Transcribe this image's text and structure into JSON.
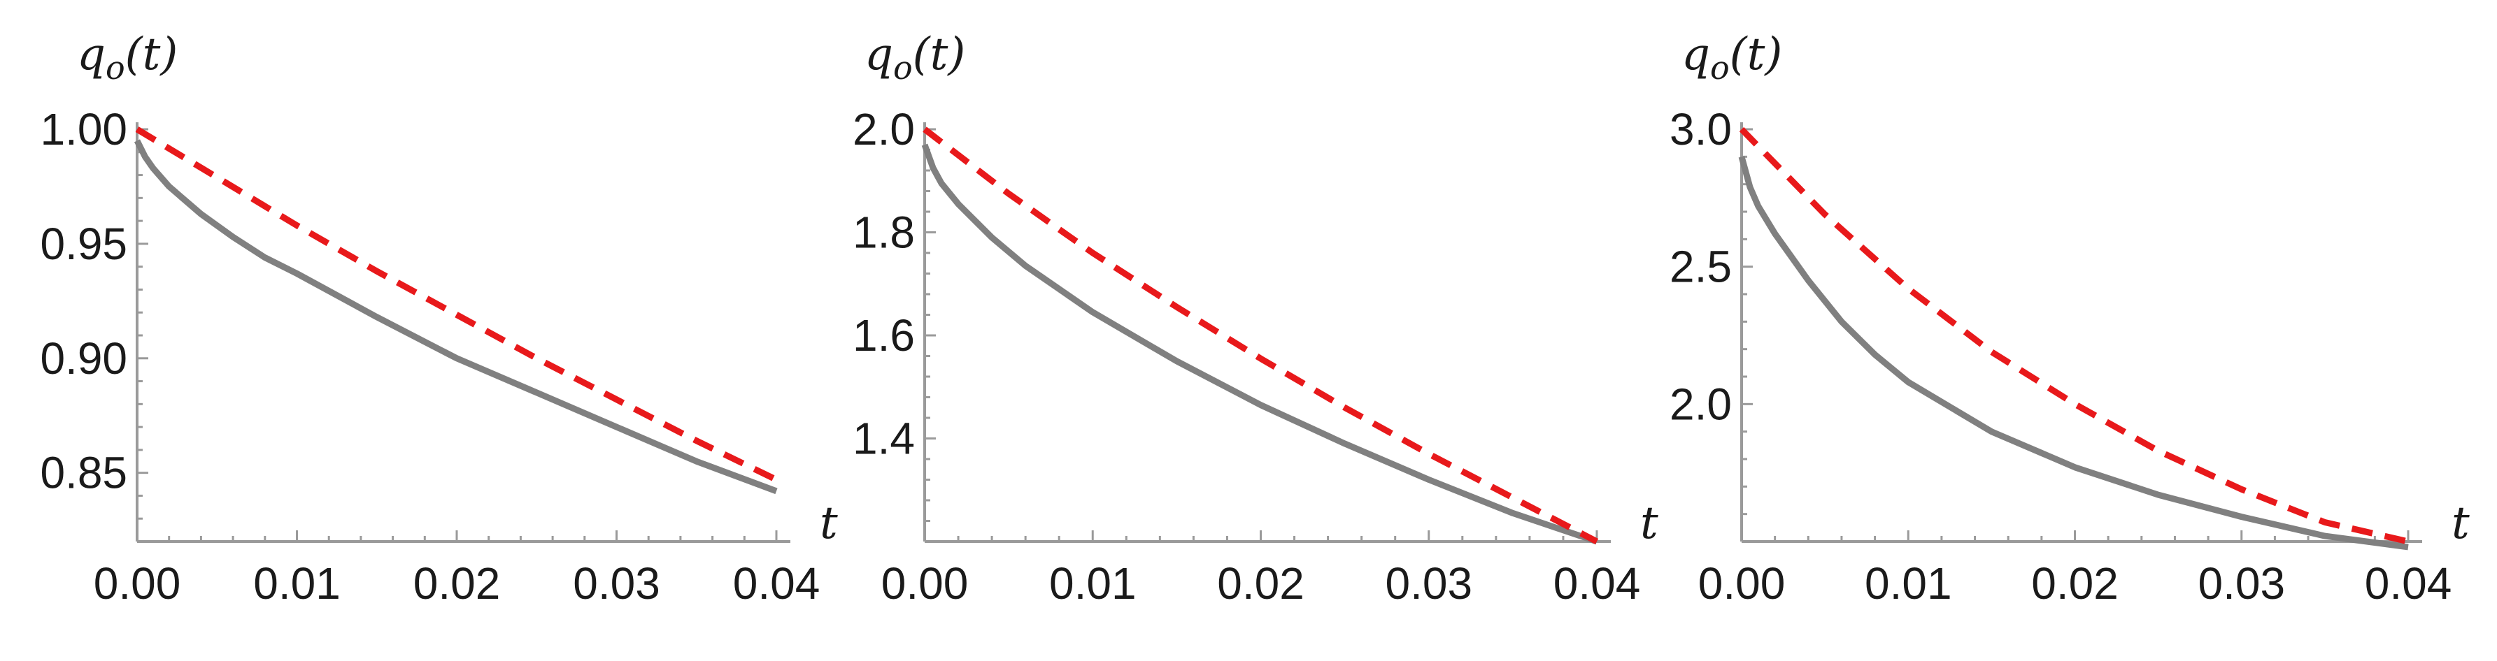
{
  "chart_data": [
    {
      "type": "line",
      "ylabel": "q_o(t)",
      "xlabel": "t",
      "xlim": [
        0,
        0.04
      ],
      "ylim": [
        0.82,
        1.0
      ],
      "xticks": [
        "0.00",
        "0.01",
        "0.02",
        "0.03",
        "0.04"
      ],
      "yticks": [
        "0.85",
        "0.90",
        "0.95",
        "1.00"
      ],
      "grid": false,
      "series": [
        {
          "style": "solid",
          "color": "#808080",
          "x": [
            0,
            0.0005,
            0.001,
            0.002,
            0.004,
            0.006,
            0.008,
            0.01,
            0.015,
            0.02,
            0.025,
            0.03,
            0.035,
            0.04
          ],
          "y": [
            0.995,
            0.988,
            0.983,
            0.975,
            0.963,
            0.953,
            0.944,
            0.937,
            0.918,
            0.9,
            0.885,
            0.87,
            0.855,
            0.842
          ]
        },
        {
          "style": "dashed",
          "color": "#e8191b",
          "x": [
            0,
            0.005,
            0.01,
            0.015,
            0.02,
            0.025,
            0.03,
            0.035,
            0.04
          ],
          "y": [
            1.0,
            0.979,
            0.958,
            0.938,
            0.919,
            0.9,
            0.882,
            0.864,
            0.847
          ]
        }
      ]
    },
    {
      "type": "line",
      "ylabel": "q_o(t)",
      "xlabel": "t",
      "xlim": [
        0,
        0.04
      ],
      "ylim": [
        1.2,
        2.0
      ],
      "xticks": [
        "0.00",
        "0.01",
        "0.02",
        "0.03",
        "0.04"
      ],
      "yticks": [
        "1.4",
        "1.6",
        "1.8",
        "2.0"
      ],
      "grid": false,
      "series": [
        {
          "style": "solid",
          "color": "#808080",
          "x": [
            0,
            0.0005,
            0.001,
            0.002,
            0.004,
            0.006,
            0.008,
            0.01,
            0.015,
            0.02,
            0.025,
            0.03,
            0.035,
            0.04
          ],
          "y": [
            1.97,
            1.925,
            1.895,
            1.855,
            1.79,
            1.735,
            1.69,
            1.645,
            1.55,
            1.465,
            1.39,
            1.32,
            1.255,
            1.2
          ]
        },
        {
          "style": "dashed",
          "color": "#e8191b",
          "x": [
            0,
            0.005,
            0.01,
            0.015,
            0.02,
            0.025,
            0.03,
            0.035,
            0.04
          ],
          "y": [
            2.0,
            1.875,
            1.76,
            1.655,
            1.555,
            1.46,
            1.37,
            1.285,
            1.2
          ]
        }
      ]
    },
    {
      "type": "line",
      "ylabel": "q_o(t)",
      "xlabel": "t",
      "xlim": [
        0,
        0.04
      ],
      "ylim": [
        1.5,
        3.0
      ],
      "xticks": [
        "0.00",
        "0.01",
        "0.02",
        "0.03",
        "0.04"
      ],
      "yticks": [
        "2.0",
        "2.5",
        "3.0"
      ],
      "grid": false,
      "series": [
        {
          "style": "solid",
          "color": "#808080",
          "x": [
            0,
            0.0005,
            0.001,
            0.002,
            0.004,
            0.006,
            0.008,
            0.01,
            0.015,
            0.02,
            0.025,
            0.03,
            0.035,
            0.04
          ],
          "y": [
            2.9,
            2.79,
            2.72,
            2.62,
            2.45,
            2.3,
            2.18,
            2.08,
            1.9,
            1.77,
            1.67,
            1.59,
            1.52,
            1.48
          ]
        },
        {
          "style": "dashed",
          "color": "#e8191b",
          "x": [
            0,
            0.005,
            0.01,
            0.015,
            0.02,
            0.025,
            0.03,
            0.035,
            0.04
          ],
          "y": [
            3.0,
            2.69,
            2.42,
            2.19,
            2.0,
            1.83,
            1.69,
            1.57,
            1.5
          ]
        }
      ]
    }
  ]
}
